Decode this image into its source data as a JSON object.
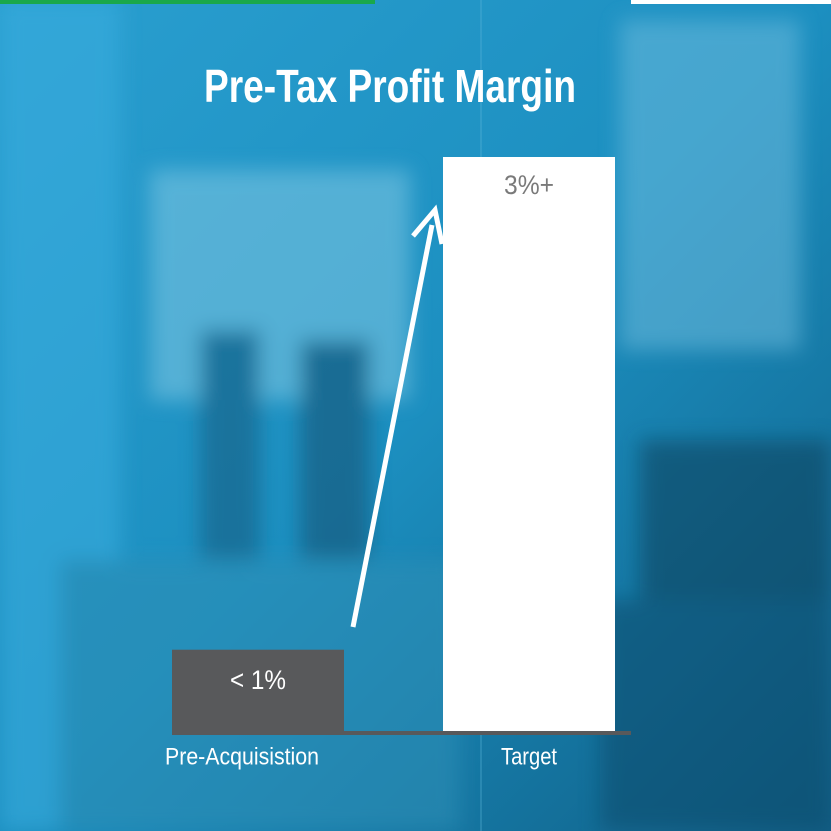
{
  "chart_data": {
    "type": "bar",
    "title": "Pre-Tax Profit Margin",
    "categories": [
      "Pre-Acquisistion",
      "Target"
    ],
    "values": [
      1,
      3
    ],
    "value_labels": [
      "< 1%",
      "3%+"
    ],
    "colors": [
      "#58595b",
      "#ffffff"
    ],
    "ylim": [
      0.67,
      3
    ]
  }
}
